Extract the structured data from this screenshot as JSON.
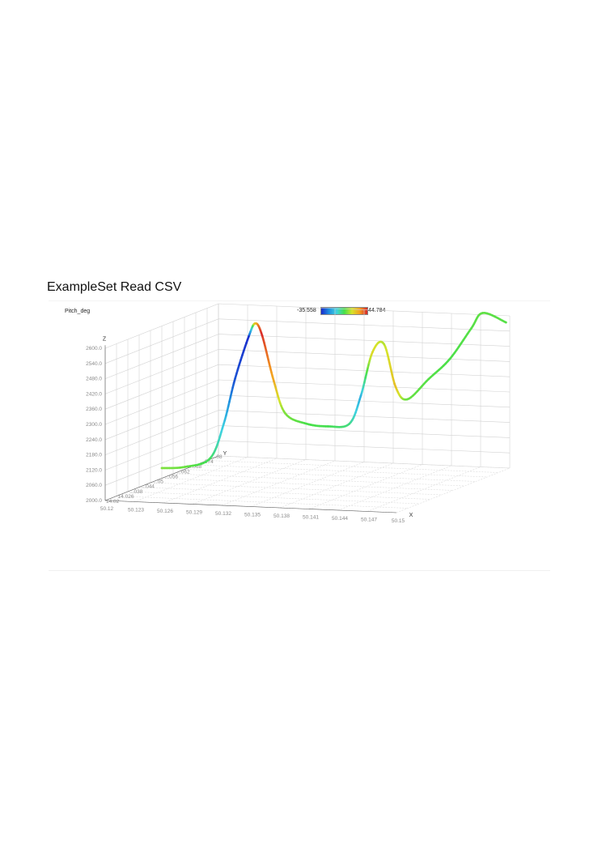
{
  "page": {
    "title": "ExampleSet Read CSV"
  },
  "legend": {
    "attribute": "Pitch_deg",
    "min_label": "-35.558",
    "max_label": "44.784",
    "min": -35.558,
    "max": 44.784,
    "gradient_colors": [
      "#1a2bcc",
      "#1f8fe0",
      "#3fd2e0",
      "#47e04a",
      "#d6e32a",
      "#f4a020",
      "#d8262a"
    ]
  },
  "chart_data": {
    "type": "scatter",
    "subtype": "3d-line",
    "color_attribute": "Pitch_deg",
    "axes": {
      "x": {
        "name": "X",
        "ticks": [
          "50.12",
          "50.123",
          "50.126",
          "50.129",
          "50.132",
          "50.135",
          "50.138",
          "50.141",
          "50.144",
          "50.147",
          "50.15"
        ],
        "range": [
          50.12,
          50.15
        ]
      },
      "y": {
        "name": "Y",
        "ticks": [
          "14.02",
          "14.026",
          "14.032",
          "14.038",
          "14.044",
          "14.05",
          "14.056",
          "14.062",
          "14.068",
          "14.074",
          "14.08"
        ],
        "visible_tick_text": [
          "14.02",
          "14.026",
          "...038",
          "...044",
          "...05",
          "...056",
          "...062",
          "...068",
          "...074",
          "...08"
        ]
      },
      "z": {
        "name": "Z",
        "ticks": [
          "2000.0",
          "2060.0",
          "2120.0",
          "2180.0",
          "2240.0",
          "2300.0",
          "2360.0",
          "2420.0",
          "2480.0",
          "2540.0",
          "2600.0"
        ],
        "range": [
          2000,
          2600
        ]
      }
    },
    "grid": true,
    "points": [
      {
        "x": 50.12,
        "y": 14.05,
        "z": 2040,
        "c": 10
      },
      {
        "x": 50.122,
        "y": 14.052,
        "z": 2042,
        "c": 8
      },
      {
        "x": 50.124,
        "y": 14.055,
        "z": 2070,
        "c": 3
      },
      {
        "x": 50.125,
        "y": 14.057,
        "z": 2200,
        "c": -10
      },
      {
        "x": 50.126,
        "y": 14.058,
        "z": 2380,
        "c": -30
      },
      {
        "x": 50.127,
        "y": 14.06,
        "z": 2540,
        "c": -35
      },
      {
        "x": 50.1275,
        "y": 14.061,
        "z": 2590,
        "c": 25
      },
      {
        "x": 50.128,
        "y": 14.062,
        "z": 2540,
        "c": 44
      },
      {
        "x": 50.129,
        "y": 14.063,
        "z": 2360,
        "c": 30
      },
      {
        "x": 50.13,
        "y": 14.064,
        "z": 2230,
        "c": 10
      },
      {
        "x": 50.132,
        "y": 14.065,
        "z": 2190,
        "c": 5
      },
      {
        "x": 50.134,
        "y": 14.066,
        "z": 2180,
        "c": 4
      },
      {
        "x": 50.136,
        "y": 14.067,
        "z": 2190,
        "c": 0
      },
      {
        "x": 50.137,
        "y": 14.068,
        "z": 2300,
        "c": -15
      },
      {
        "x": 50.138,
        "y": 14.069,
        "z": 2470,
        "c": 20
      },
      {
        "x": 50.139,
        "y": 14.07,
        "z": 2500,
        "c": 15
      },
      {
        "x": 50.14,
        "y": 14.071,
        "z": 2330,
        "c": 25
      },
      {
        "x": 50.141,
        "y": 14.072,
        "z": 2280,
        "c": 8
      },
      {
        "x": 50.143,
        "y": 14.073,
        "z": 2360,
        "c": 6
      },
      {
        "x": 50.145,
        "y": 14.074,
        "z": 2440,
        "c": 5
      },
      {
        "x": 50.147,
        "y": 14.075,
        "z": 2560,
        "c": 6
      },
      {
        "x": 50.148,
        "y": 14.076,
        "z": 2620,
        "c": 7
      },
      {
        "x": 50.15,
        "y": 14.078,
        "z": 2580,
        "c": 6
      }
    ]
  }
}
